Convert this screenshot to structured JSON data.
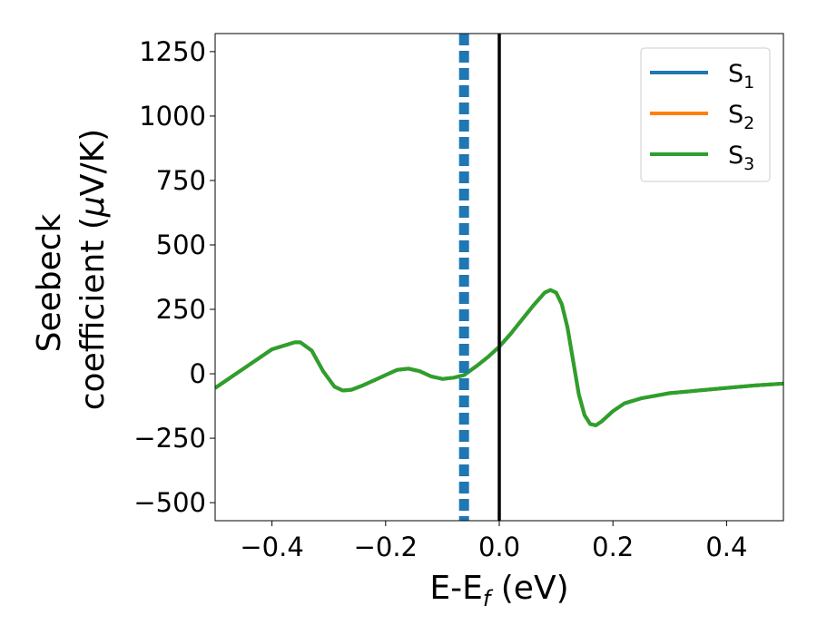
{
  "chart_data": {
    "type": "line",
    "xlabel": {
      "main": "E-E",
      "sub": "f",
      "unit": " (eV)"
    },
    "ylabel": {
      "line1": "Seebeck",
      "line2_pre": "coefficient  (",
      "mu": "μ",
      "line2_post": "V/K)"
    },
    "xlim": [
      -0.5,
      0.5
    ],
    "ylim": [
      -570,
      1320
    ],
    "x_ticks": [
      -0.4,
      -0.2,
      0.0,
      0.2,
      0.4
    ],
    "x_tick_labels": [
      "−0.4",
      "−0.2",
      "0.0",
      "0.2",
      "0.4"
    ],
    "y_ticks": [
      -500,
      -250,
      0,
      250,
      500,
      750,
      1000,
      1250
    ],
    "y_tick_labels": [
      "−500",
      "−250",
      "0",
      "250",
      "500",
      "750",
      "1000",
      "1250"
    ],
    "grid": false,
    "legend_position": "top-right",
    "vertical_lines": [
      {
        "x": -0.062,
        "style": "dashed",
        "color": "#1f77b4"
      },
      {
        "x": 0.0,
        "style": "solid",
        "color": "#000000"
      }
    ],
    "series": [
      {
        "name": "S",
        "sub": "1",
        "color": "#1f77b4",
        "x": [
          -0.5,
          -0.45,
          -0.4,
          -0.36,
          -0.35,
          -0.33,
          -0.31,
          -0.29,
          -0.275,
          -0.26,
          -0.24,
          -0.22,
          -0.2,
          -0.18,
          -0.16,
          -0.14,
          -0.12,
          -0.1,
          -0.08,
          -0.062,
          -0.04,
          -0.02,
          0.0,
          0.02,
          0.04,
          0.06,
          0.08,
          0.09,
          0.1,
          0.11,
          0.12,
          0.13,
          0.14,
          0.15,
          0.16,
          0.17,
          0.18,
          0.2,
          0.22,
          0.25,
          0.3,
          0.35,
          0.4,
          0.45,
          0.5
        ],
        "y": [
          -55,
          20,
          95,
          122,
          122,
          90,
          10,
          -50,
          -65,
          -62,
          -45,
          -25,
          -5,
          15,
          20,
          10,
          -10,
          -20,
          -15,
          -5,
          30,
          65,
          105,
          155,
          210,
          265,
          315,
          325,
          315,
          270,
          180,
          50,
          -80,
          -160,
          -195,
          -200,
          -185,
          -145,
          -115,
          -95,
          -75,
          -65,
          -55,
          -45,
          -38
        ]
      },
      {
        "name": "S",
        "sub": "2",
        "color": "#ff7f0e",
        "x": [
          -0.5,
          -0.45,
          -0.4,
          -0.36,
          -0.35,
          -0.33,
          -0.31,
          -0.29,
          -0.275,
          -0.26,
          -0.24,
          -0.22,
          -0.2,
          -0.18,
          -0.16,
          -0.14,
          -0.12,
          -0.1,
          -0.08,
          -0.062,
          -0.04,
          -0.02,
          0.0,
          0.02,
          0.04,
          0.06,
          0.08,
          0.09,
          0.1,
          0.11,
          0.12,
          0.13,
          0.14,
          0.15,
          0.16,
          0.17,
          0.18,
          0.2,
          0.22,
          0.25,
          0.3,
          0.35,
          0.4,
          0.45,
          0.5
        ],
        "y": [
          -55,
          20,
          95,
          122,
          122,
          90,
          10,
          -50,
          -65,
          -62,
          -45,
          -25,
          -5,
          15,
          20,
          10,
          -10,
          -20,
          -15,
          -5,
          30,
          65,
          105,
          155,
          210,
          265,
          315,
          325,
          315,
          270,
          180,
          50,
          -80,
          -160,
          -195,
          -200,
          -185,
          -145,
          -115,
          -95,
          -75,
          -65,
          -55,
          -45,
          -38
        ]
      },
      {
        "name": "S",
        "sub": "3",
        "color": "#2ca02c",
        "x": [
          -0.5,
          -0.45,
          -0.4,
          -0.36,
          -0.35,
          -0.33,
          -0.31,
          -0.29,
          -0.275,
          -0.26,
          -0.24,
          -0.22,
          -0.2,
          -0.18,
          -0.16,
          -0.14,
          -0.12,
          -0.1,
          -0.08,
          -0.062,
          -0.04,
          -0.02,
          0.0,
          0.02,
          0.04,
          0.06,
          0.08,
          0.09,
          0.1,
          0.11,
          0.12,
          0.13,
          0.14,
          0.15,
          0.16,
          0.17,
          0.18,
          0.2,
          0.22,
          0.25,
          0.3,
          0.35,
          0.4,
          0.45,
          0.5
        ],
        "y": [
          -55,
          20,
          95,
          122,
          122,
          90,
          10,
          -50,
          -65,
          -62,
          -45,
          -25,
          -5,
          15,
          20,
          10,
          -10,
          -20,
          -15,
          -5,
          30,
          65,
          105,
          155,
          210,
          265,
          315,
          325,
          315,
          270,
          180,
          50,
          -80,
          -160,
          -195,
          -200,
          -185,
          -145,
          -115,
          -95,
          -75,
          -65,
          -55,
          -45,
          -38
        ]
      }
    ]
  }
}
